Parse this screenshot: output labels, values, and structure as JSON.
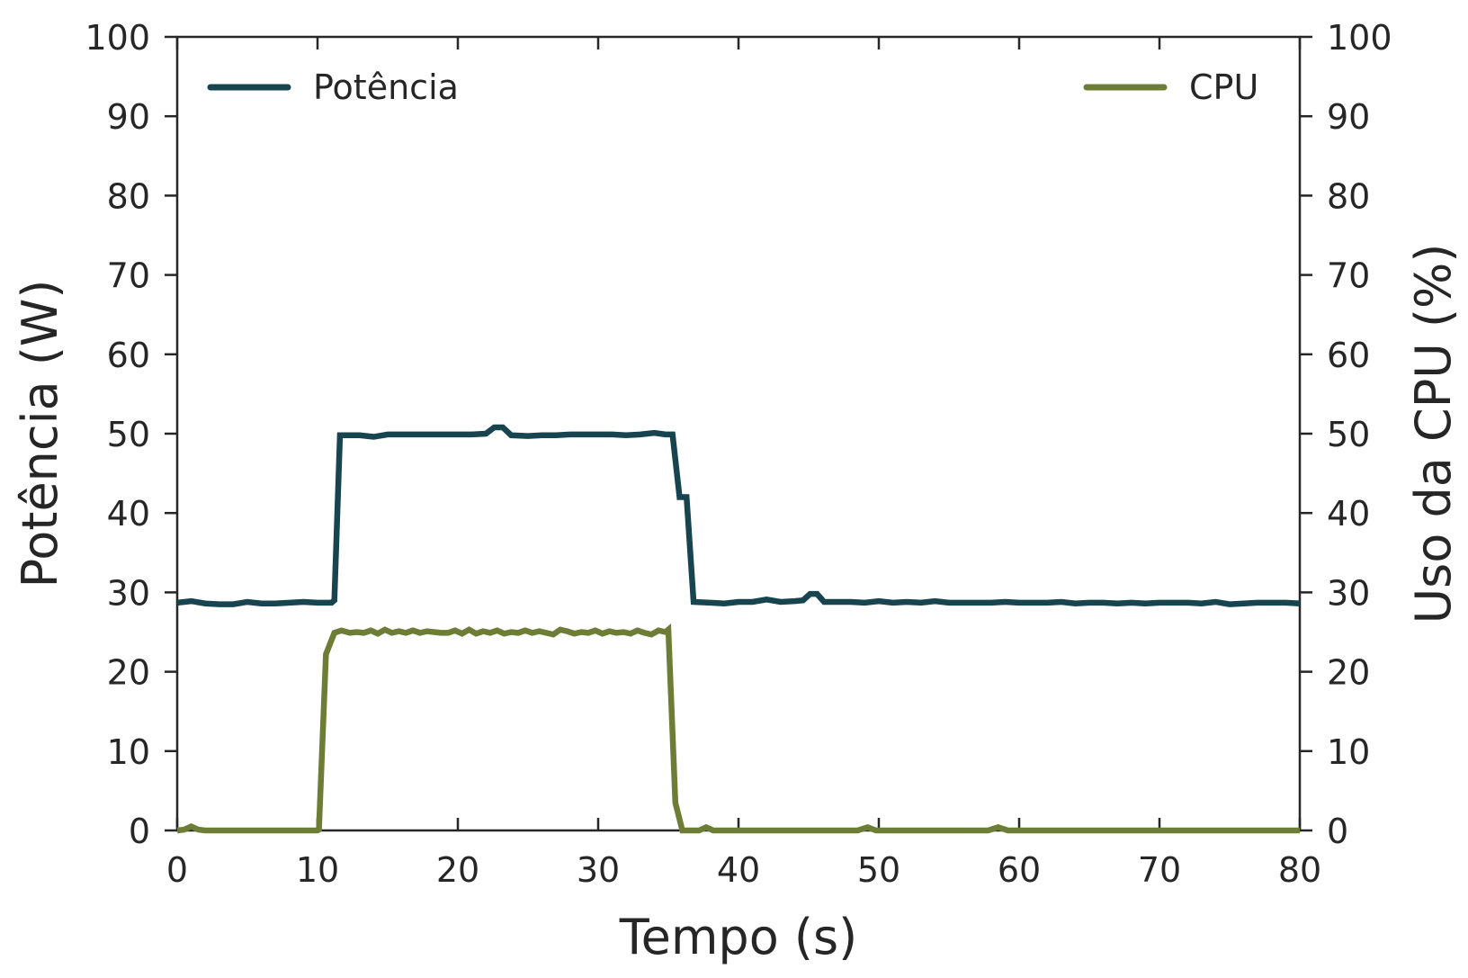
{
  "chart_data": {
    "type": "line",
    "xlabel": "Tempo (s)",
    "ylabel_left": "Potência (W)",
    "ylabel_right": "Uso da CPU (%)",
    "xlim": [
      0,
      80
    ],
    "ylim_left": [
      0,
      100
    ],
    "ylim_right": [
      0,
      100
    ],
    "x_ticks": [
      0,
      10,
      20,
      30,
      40,
      50,
      60,
      70,
      80
    ],
    "y_ticks": [
      0,
      10,
      20,
      30,
      40,
      50,
      60,
      70,
      80,
      90,
      100
    ],
    "grid": false,
    "legend_left": {
      "label": "Potência",
      "placement": "top-left"
    },
    "legend_right": {
      "label": "CPU",
      "placement": "top-right"
    },
    "series": [
      {
        "name": "Potência",
        "axis": "left",
        "color": "#17444f",
        "points": [
          [
            0,
            28.7
          ],
          [
            1,
            28.9
          ],
          [
            2,
            28.6
          ],
          [
            3,
            28.5
          ],
          [
            4,
            28.5
          ],
          [
            5,
            28.8
          ],
          [
            6,
            28.6
          ],
          [
            7,
            28.6
          ],
          [
            8,
            28.7
          ],
          [
            9,
            28.8
          ],
          [
            10,
            28.7
          ],
          [
            11,
            28.7
          ],
          [
            11.2,
            29.0
          ],
          [
            11.6,
            49.8
          ],
          [
            13,
            49.8
          ],
          [
            14,
            49.6
          ],
          [
            15,
            49.9
          ],
          [
            16,
            49.9
          ],
          [
            17,
            49.9
          ],
          [
            18,
            49.9
          ],
          [
            19,
            49.9
          ],
          [
            20,
            49.9
          ],
          [
            21,
            49.9
          ],
          [
            22,
            50.0
          ],
          [
            22.6,
            50.8
          ],
          [
            23.2,
            50.8
          ],
          [
            23.8,
            49.8
          ],
          [
            25,
            49.7
          ],
          [
            26,
            49.8
          ],
          [
            27,
            49.8
          ],
          [
            28,
            49.9
          ],
          [
            29,
            49.9
          ],
          [
            30,
            49.9
          ],
          [
            31,
            49.9
          ],
          [
            32,
            49.8
          ],
          [
            33,
            49.9
          ],
          [
            34,
            50.1
          ],
          [
            34.8,
            49.9
          ],
          [
            35.3,
            49.9
          ],
          [
            35.8,
            42.0
          ],
          [
            36.3,
            42.0
          ],
          [
            36.8,
            28.8
          ],
          [
            38,
            28.7
          ],
          [
            39,
            28.6
          ],
          [
            40,
            28.8
          ],
          [
            41,
            28.8
          ],
          [
            42,
            29.1
          ],
          [
            43,
            28.8
          ],
          [
            44,
            28.9
          ],
          [
            44.6,
            29.0
          ],
          [
            45.1,
            29.8
          ],
          [
            45.6,
            29.8
          ],
          [
            46.1,
            28.8
          ],
          [
            47,
            28.8
          ],
          [
            48,
            28.8
          ],
          [
            49,
            28.7
          ],
          [
            50,
            28.9
          ],
          [
            51,
            28.7
          ],
          [
            52,
            28.8
          ],
          [
            53,
            28.7
          ],
          [
            54,
            28.9
          ],
          [
            55,
            28.7
          ],
          [
            56,
            28.7
          ],
          [
            57,
            28.7
          ],
          [
            58,
            28.7
          ],
          [
            59,
            28.8
          ],
          [
            60,
            28.7
          ],
          [
            61,
            28.7
          ],
          [
            62,
            28.7
          ],
          [
            63,
            28.8
          ],
          [
            64,
            28.6
          ],
          [
            65,
            28.7
          ],
          [
            66,
            28.7
          ],
          [
            67,
            28.6
          ],
          [
            68,
            28.7
          ],
          [
            69,
            28.6
          ],
          [
            70,
            28.7
          ],
          [
            71,
            28.7
          ],
          [
            72,
            28.7
          ],
          [
            73,
            28.6
          ],
          [
            74,
            28.8
          ],
          [
            75,
            28.5
          ],
          [
            76,
            28.6
          ],
          [
            77,
            28.7
          ],
          [
            78,
            28.7
          ],
          [
            79,
            28.7
          ],
          [
            80,
            28.6
          ]
        ]
      },
      {
        "name": "CPU",
        "axis": "right",
        "color": "#6e7d35",
        "points": [
          [
            0,
            0
          ],
          [
            0.5,
            0.1
          ],
          [
            1.0,
            0.5
          ],
          [
            1.5,
            0.1
          ],
          [
            2,
            0
          ],
          [
            10,
            0
          ],
          [
            10.1,
            0.1
          ],
          [
            10.6,
            22.2
          ],
          [
            11.2,
            24.9
          ],
          [
            11.7,
            25.2
          ],
          [
            12.3,
            24.9
          ],
          [
            12.8,
            25.0
          ],
          [
            13.3,
            24.9
          ],
          [
            13.8,
            25.2
          ],
          [
            14.3,
            24.8
          ],
          [
            14.8,
            25.3
          ],
          [
            15.3,
            24.9
          ],
          [
            15.8,
            25.1
          ],
          [
            16.3,
            24.9
          ],
          [
            16.8,
            25.2
          ],
          [
            17.3,
            24.9
          ],
          [
            17.8,
            25.1
          ],
          [
            18.3,
            25.0
          ],
          [
            18.8,
            24.9
          ],
          [
            19.3,
            24.9
          ],
          [
            19.8,
            25.2
          ],
          [
            20.3,
            24.8
          ],
          [
            20.8,
            25.3
          ],
          [
            21.3,
            24.8
          ],
          [
            21.8,
            25.1
          ],
          [
            22.3,
            24.9
          ],
          [
            22.8,
            25.2
          ],
          [
            23.3,
            24.8
          ],
          [
            23.8,
            25.0
          ],
          [
            24.3,
            24.9
          ],
          [
            24.8,
            25.2
          ],
          [
            25.3,
            24.9
          ],
          [
            25.8,
            25.1
          ],
          [
            26.3,
            24.9
          ],
          [
            26.8,
            24.7
          ],
          [
            27.3,
            25.3
          ],
          [
            27.8,
            25.1
          ],
          [
            28.3,
            24.8
          ],
          [
            28.8,
            25.0
          ],
          [
            29.3,
            24.9
          ],
          [
            29.8,
            25.2
          ],
          [
            30.3,
            24.8
          ],
          [
            30.8,
            25.1
          ],
          [
            31.3,
            24.9
          ],
          [
            31.8,
            25.0
          ],
          [
            32.3,
            24.8
          ],
          [
            32.8,
            25.2
          ],
          [
            33.3,
            24.9
          ],
          [
            33.8,
            24.7
          ],
          [
            34.3,
            25.2
          ],
          [
            34.8,
            25.0
          ],
          [
            35.0,
            25.3
          ],
          [
            35.5,
            3.5
          ],
          [
            36.0,
            0
          ],
          [
            37.2,
            0
          ],
          [
            37.7,
            0.4
          ],
          [
            38.2,
            0
          ],
          [
            48.5,
            0
          ],
          [
            49.2,
            0.4
          ],
          [
            49.8,
            0
          ],
          [
            57.8,
            0
          ],
          [
            58.5,
            0.4
          ],
          [
            59.2,
            0
          ],
          [
            80,
            0
          ]
        ]
      }
    ]
  }
}
